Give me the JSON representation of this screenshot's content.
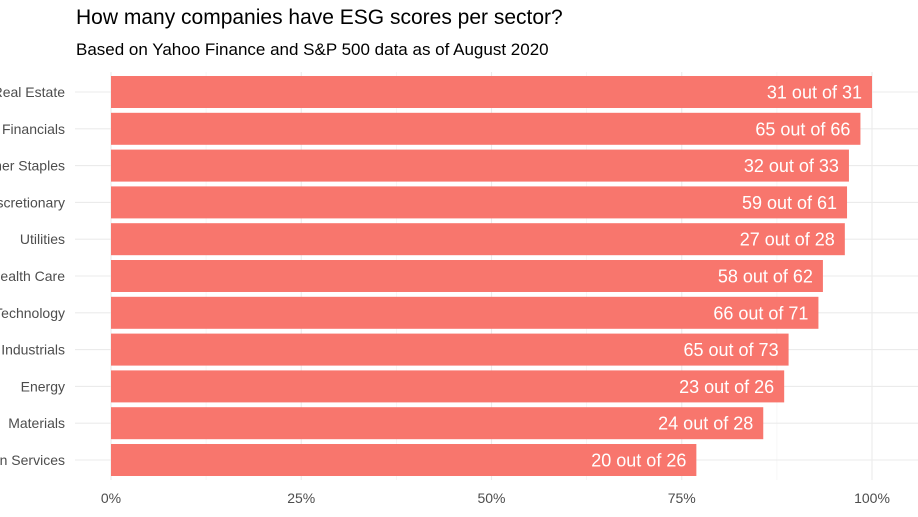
{
  "title": "How many companies have ESG scores per sector?",
  "subtitle": "Based on Yahoo Finance and S&P 500 data as of August 2020",
  "colors": {
    "bar": "#F8766D",
    "grid": "#ebebeb",
    "text": "#4d4d4d"
  },
  "chart_data": {
    "type": "bar",
    "orientation": "horizontal",
    "categories": [
      "Real Estate",
      "Financials",
      "Consumer Staples",
      "Consumer Discretionary",
      "Utilities",
      "Health Care",
      "Information Technology",
      "Industrials",
      "Energy",
      "Materials",
      "Communication Services"
    ],
    "values": [
      1.0,
      0.9848,
      0.9697,
      0.9672,
      0.9643,
      0.9355,
      0.9296,
      0.8904,
      0.8846,
      0.8571,
      0.7692
    ],
    "labels": [
      "31 out of 31",
      "65 out of 66",
      "32 out of 33",
      "59 out of 61",
      "27 out of 28",
      "58 out of 62",
      "66 out of 71",
      "65 out of 73",
      "23 out of 26",
      "24 out of 28",
      "20 out of 26"
    ],
    "xlim": [
      0,
      1
    ],
    "xticks": [
      0,
      0.25,
      0.5,
      0.75,
      1.0
    ],
    "xtick_labels": [
      "0%",
      "25%",
      "50%",
      "75%",
      "100%"
    ],
    "xlabel": "",
    "ylabel": "",
    "grid": true
  }
}
